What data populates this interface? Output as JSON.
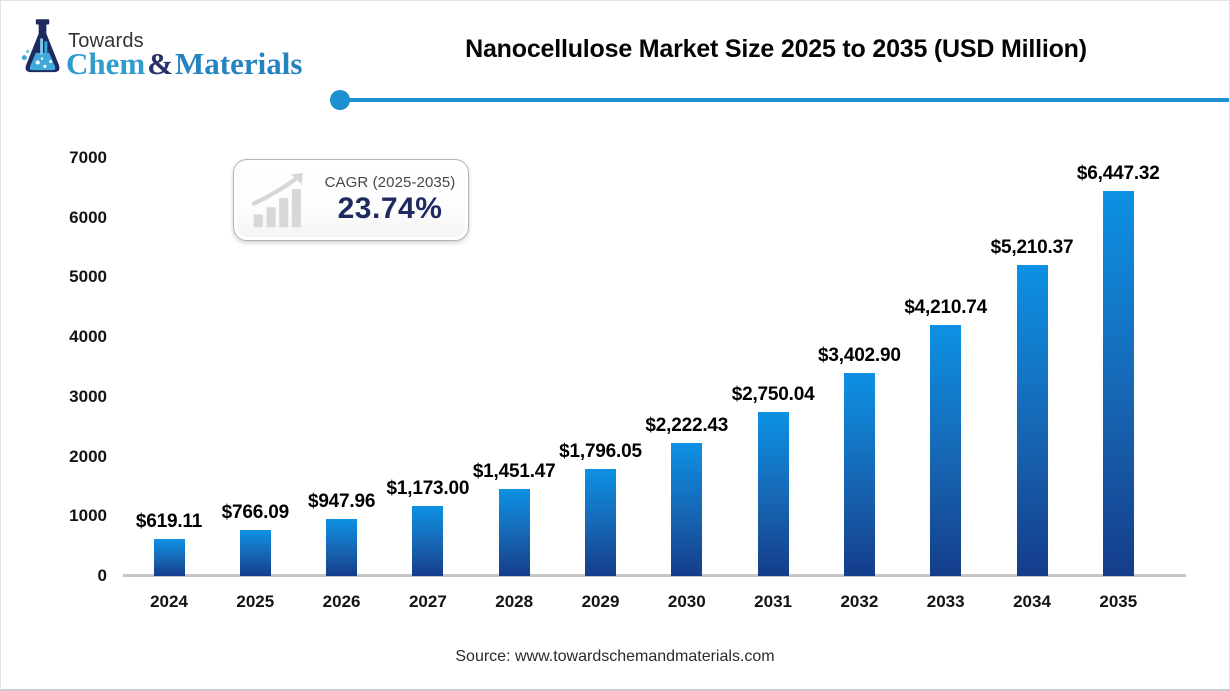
{
  "header": {
    "logo": {
      "towards": "Towards",
      "chem": "Chem",
      "amp": "&",
      "materials": "Materials"
    },
    "title": "Nanocellulose Market Size 2025 to 2035 (USD Million)"
  },
  "cagr_badge": {
    "label": "CAGR (2025-2035)",
    "value": "23.74%"
  },
  "source": "Source: www.towardschemandmaterials.com",
  "colors": {
    "accent_blue": "#1e8fd0",
    "bar_top": "#0d91e4",
    "bar_bottom": "#143d8b",
    "navy_text": "#1f2a5e",
    "logo_cyan": "#2f9ccd",
    "logo_blue": "#2583c0",
    "axis_gray": "#c6c6c6"
  },
  "chart_data": {
    "type": "bar",
    "title": "Nanocellulose Market Size 2025 to 2035 (USD Million)",
    "unit": "USD Million",
    "categories": [
      "2024",
      "2025",
      "2026",
      "2027",
      "2028",
      "2029",
      "2030",
      "2031",
      "2032",
      "2033",
      "2034",
      "2035"
    ],
    "values": [
      619.11,
      766.09,
      947.96,
      1173.0,
      1451.47,
      1796.05,
      2222.43,
      2750.04,
      3402.9,
      4210.74,
      5210.37,
      6447.32
    ],
    "data_labels": [
      "$619.11",
      "$766.09",
      "$947.96",
      "$1,173.00",
      "$1,451.47",
      "$1,796.05",
      "$2,222.43",
      "$2,750.04",
      "$3,402.90",
      "$4,210.74",
      "$5,210.37",
      "$6,447.32"
    ],
    "xlabel": "",
    "ylabel": "",
    "ylim": [
      0,
      7000
    ],
    "yticks": [
      0,
      1000,
      2000,
      3000,
      4000,
      5000,
      6000,
      7000
    ],
    "grid": false,
    "legend": "none"
  }
}
